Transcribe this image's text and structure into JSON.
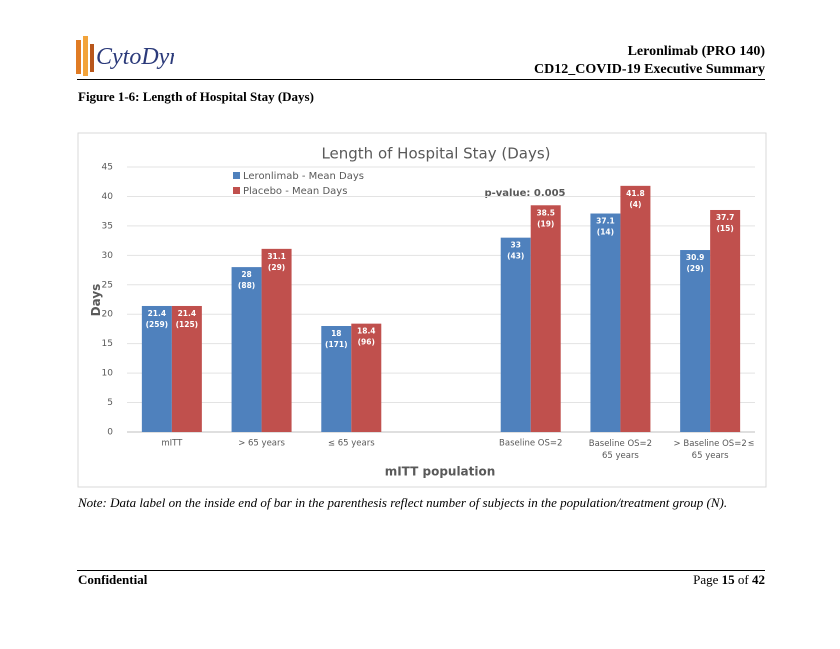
{
  "header": {
    "logo_text": "CytoDyn",
    "title_line1": "Leronlimab (PRO 140)",
    "title_line2": "CD12_COVID-19 Executive Summary"
  },
  "figure_caption": "Figure 1-6: Length of Hospital Stay (Days)",
  "chart_data": {
    "type": "bar",
    "title": "Length of Hospital Stay (Days)",
    "ylabel": "Days",
    "xlabel": "mITT population",
    "annotation": "p-value: 0.005",
    "overflow_label": "≤",
    "categories": [
      "mITT",
      "> 65 years",
      "≤ 65 years",
      null,
      "Baseline OS=2",
      "Baseline OS=2\n65 years",
      "> Baseline OS=2\n65 years"
    ],
    "series": [
      {
        "name": "Leronlimab - Mean Days",
        "color": "#4f81bd",
        "values": [
          21.4,
          28,
          18,
          null,
          33,
          37.1,
          30.9
        ],
        "n_labels": [
          "(259)",
          "(88)",
          "(171)",
          null,
          "(43)",
          "(14)",
          "(29)"
        ]
      },
      {
        "name": "Placebo - Mean Days",
        "color": "#c0504d",
        "values": [
          21.4,
          31.1,
          18.4,
          null,
          38.5,
          41.8,
          37.7
        ],
        "n_labels": [
          "(125)",
          "(29)",
          "(96)",
          null,
          "(19)",
          "(4)",
          "(15)"
        ]
      }
    ],
    "ylim": [
      0,
      45
    ],
    "yticks": [
      0,
      5,
      10,
      15,
      20,
      25,
      30,
      35,
      40,
      45
    ],
    "grid": true,
    "legend": "top-left"
  },
  "note": "Note: Data label on the inside end of bar in the parenthesis reflect number of subjects in the population/treatment group (N).",
  "footer": {
    "left": "Confidential",
    "page_word": "Page",
    "page_number": "15",
    "of_word": "of",
    "page_total": "42"
  }
}
